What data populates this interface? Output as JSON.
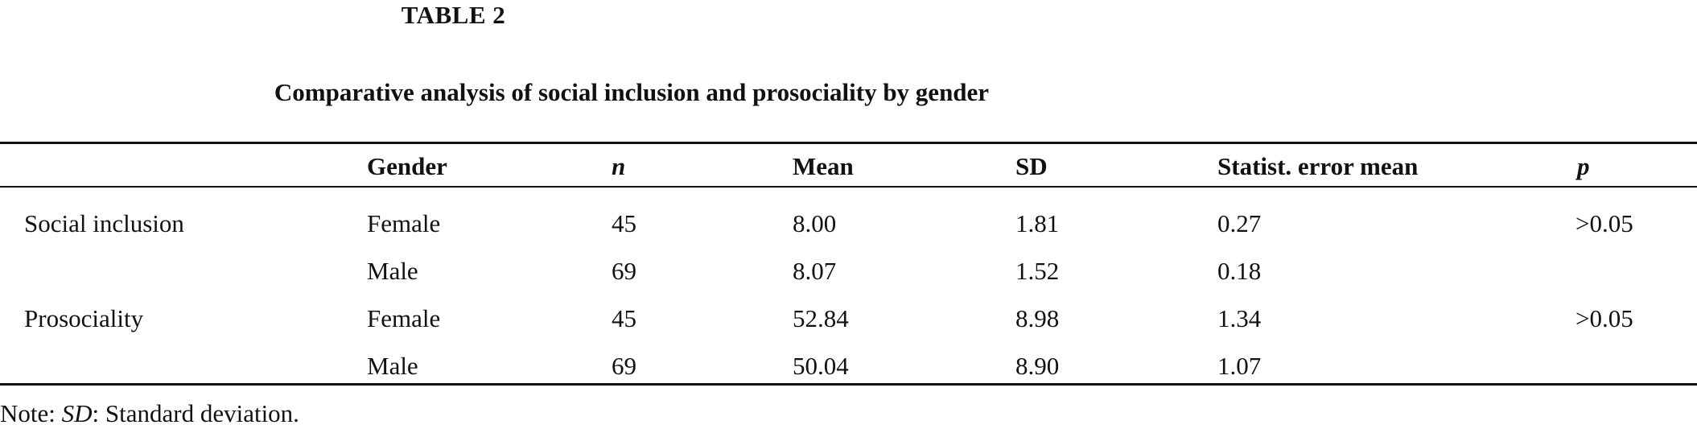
{
  "table_label": "TABLE 2",
  "caption": "Comparative analysis of social inclusion and prosociality by gender",
  "headers": {
    "variable": "",
    "gender": "Gender",
    "n": "n",
    "mean": "Mean",
    "sd": "SD",
    "sem": "Statist. error mean",
    "p": "p"
  },
  "rows": [
    {
      "variable": "Social inclusion",
      "gender": "Female",
      "n": "45",
      "mean": "8.00",
      "sd": "1.81",
      "sem": "0.27",
      "p": ">0.05"
    },
    {
      "variable": "",
      "gender": "Male",
      "n": "69",
      "mean": "8.07",
      "sd": "1.52",
      "sem": "0.18",
      "p": ""
    },
    {
      "variable": "Prosociality",
      "gender": "Female",
      "n": "45",
      "mean": "52.84",
      "sd": "8.98",
      "sem": "1.34",
      "p": ">0.05"
    },
    {
      "variable": "",
      "gender": "Male",
      "n": "69",
      "mean": "50.04",
      "sd": "8.90",
      "sem": "1.07",
      "p": ""
    }
  ],
  "note": {
    "prefix": "Note: ",
    "abbr": "SD",
    "text": ": Standard deviation."
  }
}
